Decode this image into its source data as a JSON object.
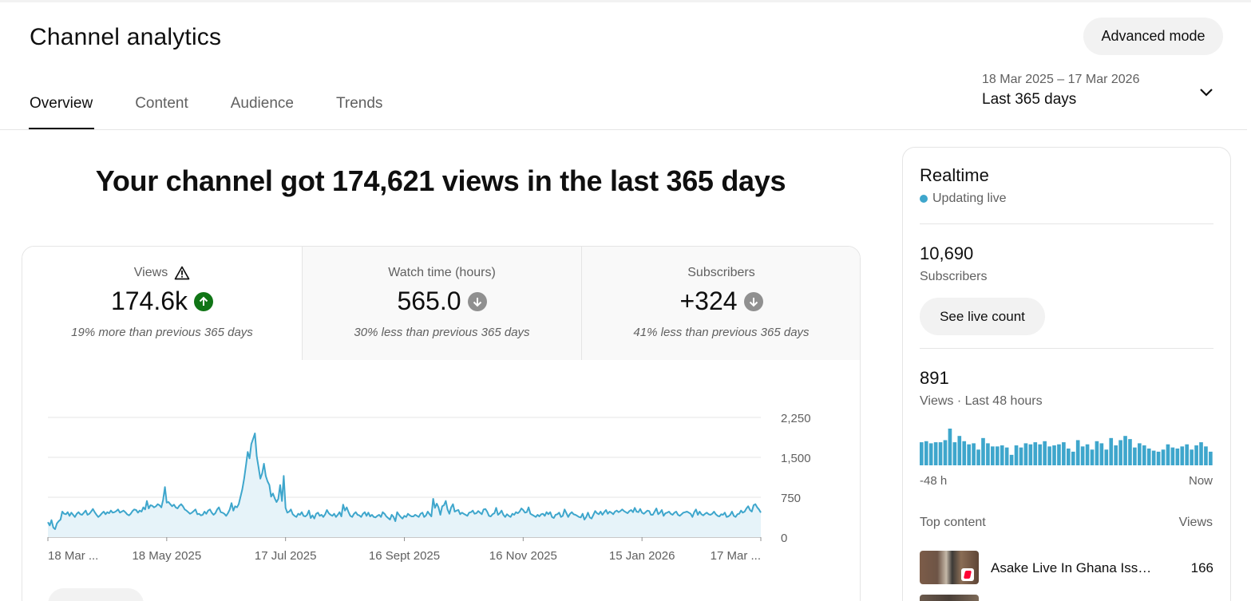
{
  "page": {
    "title": "Channel analytics",
    "advanced_mode": "Advanced mode"
  },
  "tabs": [
    {
      "label": "Overview",
      "active": true
    },
    {
      "label": "Content",
      "active": false
    },
    {
      "label": "Audience",
      "active": false
    },
    {
      "label": "Trends",
      "active": false
    }
  ],
  "date_range": {
    "dates": "18 Mar 2025 – 17 Mar 2026",
    "label": "Last 365 days",
    "icon": "chevron-down-icon"
  },
  "headline": "Your channel got 174,621 views in the last 365 days",
  "metrics": [
    {
      "label": "Views",
      "value": "174.6k",
      "note": "19% more than previous 365 days",
      "trend": "up",
      "icon": "warning-icon"
    },
    {
      "label": "Watch time (hours)",
      "value": "565.0",
      "note": "30% less than previous 365 days",
      "trend": "down"
    },
    {
      "label": "Subscribers",
      "value": "+324",
      "note": "41% less than previous 365 days",
      "trend": "down"
    }
  ],
  "colors": {
    "accent": "#3ea6cc",
    "area_fill": "#e6f3f9",
    "trend_up": "#107516",
    "trend_down": "#909090"
  },
  "chart_data": {
    "type": "area",
    "series": [
      {
        "values": [
          280,
          220,
          320,
          180,
          150,
          260,
          300,
          330,
          480,
          440,
          430,
          470,
          400,
          460,
          420,
          380,
          440,
          470,
          430,
          420,
          460,
          500,
          420,
          440,
          480,
          530,
          470,
          420,
          380,
          410,
          450,
          480,
          430,
          470,
          450,
          500,
          460,
          470,
          490,
          520,
          460,
          480,
          500,
          470,
          430,
          410,
          440,
          490,
          520,
          510,
          460,
          500,
          480,
          560,
          520,
          680,
          540,
          600,
          590,
          560,
          580,
          620,
          600,
          560,
          700,
          940,
          650,
          660,
          620,
          580,
          610,
          560,
          540,
          590,
          620,
          580,
          520,
          500,
          470,
          440,
          460,
          490,
          520,
          430,
          440,
          410,
          420,
          480,
          440,
          500,
          520,
          460,
          420,
          450,
          520,
          560,
          470,
          460,
          440,
          400,
          450,
          520,
          640,
          500,
          580,
          560,
          620,
          760,
          900,
          1100,
          1350,
          1600,
          1480,
          1750,
          1850,
          1950,
          1520,
          1320,
          1100,
          1200,
          1380,
          1150,
          1050,
          980,
          760,
          820,
          730,
          660,
          720,
          980,
          680,
          1150,
          550,
          460,
          480,
          520,
          430,
          400,
          380,
          440,
          420,
          470,
          400,
          390,
          420,
          500,
          360,
          410,
          350,
          440,
          460,
          400,
          420,
          380,
          430,
          510,
          450,
          420,
          400,
          440,
          380,
          420,
          470,
          390,
          610,
          500,
          560,
          470,
          400,
          380,
          440,
          470,
          420,
          410,
          380,
          440,
          470,
          400,
          460,
          390,
          420,
          380,
          370,
          400,
          420,
          380,
          470,
          440,
          390,
          360,
          330,
          420,
          380,
          300,
          470,
          420,
          380,
          350,
          400,
          380,
          440,
          410,
          390,
          390,
          420,
          400,
          380,
          440,
          460,
          380,
          410,
          480,
          430,
          390,
          720,
          550,
          630,
          560,
          420,
          580,
          600,
          680,
          520,
          440,
          560,
          620,
          480,
          500,
          510,
          430,
          460,
          440,
          420,
          400,
          460,
          470,
          500,
          440,
          450,
          490,
          460,
          430,
          520,
          530,
          480,
          400,
          390,
          430,
          450,
          550,
          420,
          450,
          500,
          420,
          380,
          430,
          400,
          380,
          440,
          420,
          470,
          450,
          480,
          540,
          510,
          460,
          470,
          560,
          440,
          420,
          400,
          380,
          420,
          390,
          430,
          440,
          400,
          470,
          430,
          470,
          380,
          360,
          420,
          430,
          460,
          380,
          400,
          520,
          450,
          380,
          440,
          470,
          430,
          420,
          400,
          380,
          370,
          440,
          330,
          380,
          460,
          370,
          350,
          420,
          490,
          450,
          430,
          480,
          420,
          470,
          510,
          440,
          480,
          460,
          430,
          480,
          500,
          470,
          490,
          520,
          490,
          470,
          450,
          490,
          510,
          470,
          550,
          480,
          470,
          530,
          460,
          440,
          470,
          500,
          490,
          420,
          420,
          480,
          540,
          430,
          460,
          510,
          400,
          450,
          460,
          480,
          440,
          420,
          460,
          480,
          420,
          400,
          430,
          460,
          470,
          480,
          460,
          440,
          380,
          470,
          520,
          420,
          480,
          430,
          410,
          440,
          460,
          430,
          420,
          440,
          480,
          430,
          400,
          390,
          430,
          420,
          460,
          380,
          390,
          420,
          480,
          400,
          380,
          430,
          440,
          500,
          460,
          480,
          540,
          580,
          510,
          480,
          600,
          620,
          560,
          520,
          460
        ]
      }
    ],
    "x_tick_labels": [
      "18 Mar ...",
      "18 May 2025",
      "17 Jul 2025",
      "16 Sept 2025",
      "16 Nov 2025",
      "15 Jan 2026",
      "17 Mar ..."
    ],
    "y_tick_labels": [
      "0",
      "750",
      "1,500",
      "2,250"
    ],
    "ylim": [
      0,
      2250
    ],
    "grid": true
  },
  "realtime": {
    "title": "Realtime",
    "status": "Updating live",
    "subscribers_value": "10,690",
    "subscribers_label": "Subscribers",
    "live_count_button": "See live count",
    "views_value": "891",
    "views_label": "Views · Last 48 hours",
    "bars": [
      22,
      23,
      21,
      22,
      22,
      24,
      35,
      22,
      28,
      23,
      20,
      21,
      15,
      26,
      21,
      18,
      18,
      19,
      17,
      10,
      19,
      17,
      21,
      20,
      22,
      20,
      23,
      18,
      19,
      20,
      22,
      16,
      13,
      24,
      18,
      20,
      15,
      23,
      21,
      15,
      26,
      19,
      24,
      28,
      25,
      17,
      21,
      19,
      16,
      14,
      13,
      15,
      20,
      17,
      16,
      18,
      20,
      15,
      19,
      22,
      18,
      13
    ],
    "bars_start_label": "-48 h",
    "bars_end_label": "Now",
    "top_content_label": "Top content",
    "views_column_label": "Views",
    "top_items": [
      {
        "title": "Asake Live In Ghana Issa Goal | Asake Concert",
        "views": "166"
      }
    ]
  }
}
